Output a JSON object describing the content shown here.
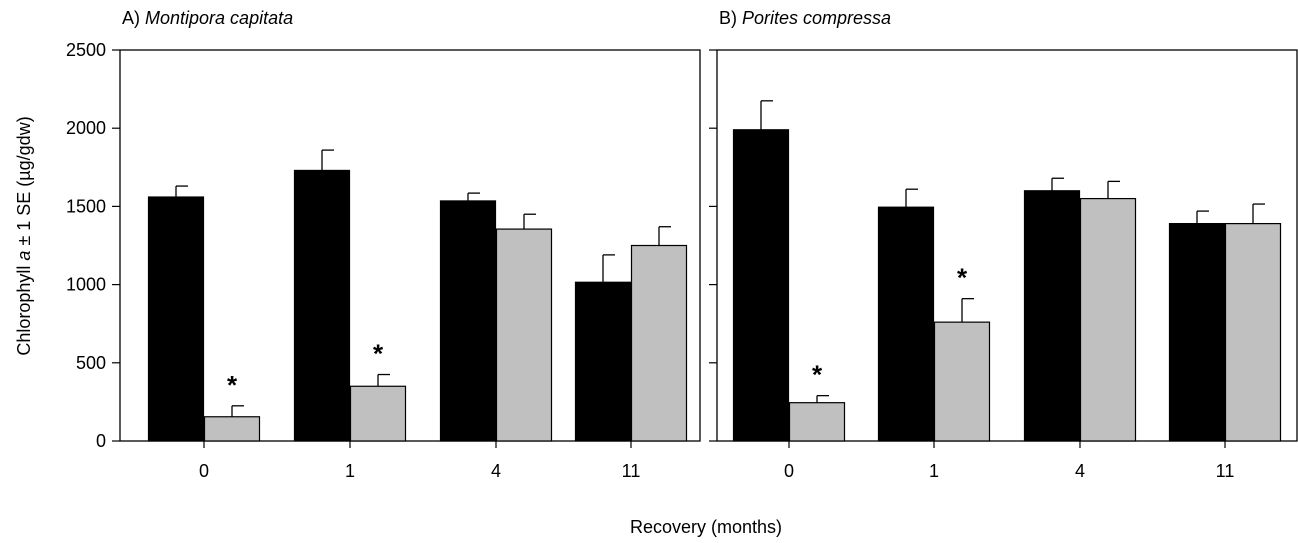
{
  "chart_data": [
    {
      "type": "bar",
      "panel_letter": "A)",
      "title": "Montipora capitata",
      "categories": [
        "0",
        "1",
        "4",
        "11"
      ],
      "series": [
        {
          "color": "#000000",
          "values": [
            1560,
            1730,
            1535,
            1015
          ],
          "se": [
            70,
            130,
            50,
            175
          ]
        },
        {
          "color": "#c0c0c0",
          "values": [
            155,
            350,
            1355,
            1250
          ],
          "se": [
            70,
            75,
            95,
            120
          ]
        }
      ],
      "significance": [
        "*",
        "*",
        "",
        ""
      ],
      "ylim": [
        0,
        2500
      ],
      "yticks": [
        0,
        500,
        1000,
        1500,
        2000,
        2500
      ],
      "grid": false
    },
    {
      "type": "bar",
      "panel_letter": "B)",
      "title": "Porites compressa",
      "categories": [
        "0",
        "1",
        "4",
        "11"
      ],
      "series": [
        {
          "color": "#000000",
          "values": [
            1990,
            1495,
            1600,
            1390
          ],
          "se": [
            185,
            115,
            80,
            80
          ]
        },
        {
          "color": "#c0c0c0",
          "values": [
            245,
            760,
            1550,
            1390
          ],
          "se": [
            45,
            150,
            110,
            125
          ]
        }
      ],
      "significance": [
        "*",
        "*",
        "",
        ""
      ],
      "ylim": [
        0,
        2500
      ],
      "yticks": [
        0,
        500,
        1000,
        1500,
        2000,
        2500
      ],
      "grid": false
    }
  ],
  "ylabel_prefix": "Chlorophyll ",
  "ylabel_italic": "a",
  "ylabel_suffix": " ± 1 SE (µg/gdw)",
  "xlabel": "Recovery (months)"
}
